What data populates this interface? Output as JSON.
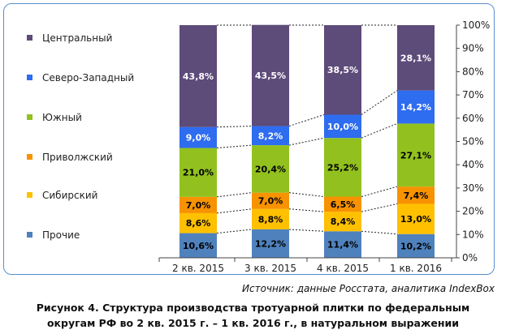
{
  "chart_data": {
    "type": "bar",
    "stacked": "percent",
    "categories": [
      "2 кв. 2015",
      "3 кв. 2015",
      "4 кв. 2015",
      "1 кв. 2016"
    ],
    "series": [
      {
        "name": "Прочие",
        "color": "#4f81bd",
        "values": [
          10.6,
          12.2,
          11.4,
          10.2
        ],
        "labels": [
          "10,6%",
          "12,2%",
          "11,4%",
          "10,2%"
        ]
      },
      {
        "name": "Сибирский",
        "color": "#ffc000",
        "values": [
          8.6,
          8.8,
          8.4,
          13.0
        ],
        "labels": [
          "8,6%",
          "8,8%",
          "8,4%",
          "13,0%"
        ]
      },
      {
        "name": "Приволжский",
        "color": "#f79200",
        "values": [
          7.0,
          7.0,
          6.5,
          7.4
        ],
        "labels": [
          "7,0%",
          "7,0%",
          "6,5%",
          "7,4%"
        ]
      },
      {
        "name": "Южный",
        "color": "#92c11f",
        "values": [
          21.0,
          20.4,
          25.2,
          27.1
        ],
        "labels": [
          "21,0%",
          "20,4%",
          "25,2%",
          "27,1%"
        ]
      },
      {
        "name": "Северо-Западный",
        "color": "#2e6cf0",
        "values": [
          9.0,
          8.2,
          10.0,
          14.2
        ],
        "labels": [
          "9,0%",
          "8,2%",
          "10,0%",
          "14,2%"
        ]
      },
      {
        "name": "Центральный",
        "color": "#5d4b7a",
        "values": [
          43.8,
          43.5,
          38.5,
          28.1
        ],
        "labels": [
          "43,8%",
          "43,5%",
          "38,5%",
          "28,1%"
        ]
      }
    ],
    "label_colors": [
      "#000000",
      "#000000",
      "#000000",
      "#000000",
      "#ffffff",
      "#ffffff"
    ],
    "legend_order": [
      "Центральный",
      "Северо-Западный",
      "Южный",
      "Приволжский",
      "Сибирский",
      "Прочие"
    ],
    "yticks": [
      "0%",
      "10%",
      "20%",
      "30%",
      "40%",
      "50%",
      "60%",
      "70%",
      "80%",
      "90%",
      "100%"
    ],
    "ylim": [
      0,
      100
    ],
    "legend_position": "left",
    "series_lines": true,
    "grid": false
  },
  "source": "Источник: данные Росстата, аналитика IndexBox",
  "caption": {
    "line1": "Рисунок 4. Структура производства тротуарной плитки по федеральным",
    "line2": "округам РФ во 2 кв. 2015 г. – 1 кв. 2016 г., в натуральном выражении"
  }
}
